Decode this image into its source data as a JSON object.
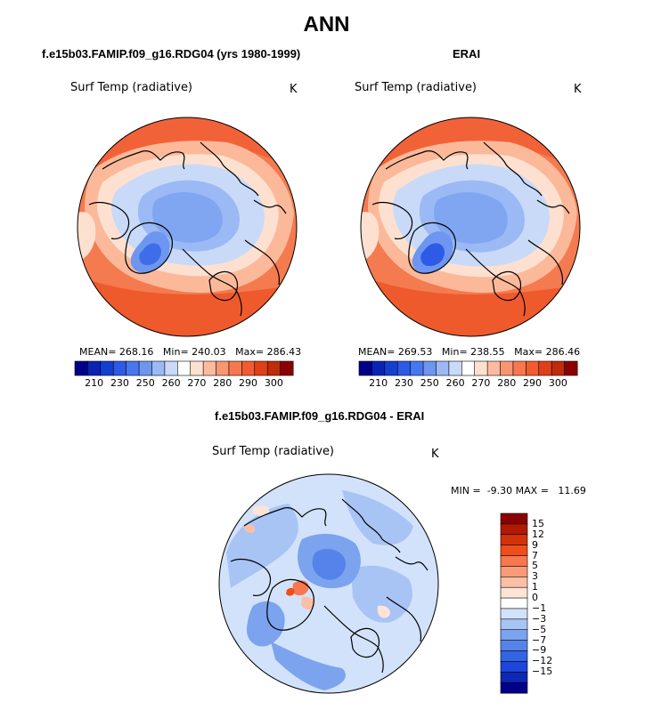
{
  "title": "ANN",
  "panels": [
    {
      "id": "model",
      "title": "f.e15b03.FAMIP.f09_g16.RDG04 (yrs 1980-1999)",
      "variable": "Surf Temp (radiative)",
      "units": "K",
      "stats": {
        "mean_label": "MEAN=",
        "mean": "268.16",
        "min_label": "Min=",
        "min": "240.03",
        "max_label": "Max=",
        "max": "286.43"
      }
    },
    {
      "id": "obs",
      "title": "ERAI",
      "variable": "Surf Temp (radiative)",
      "units": "K",
      "stats": {
        "mean_label": "MEAN=",
        "mean": "269.53",
        "min_label": "Min=",
        "min": "238.55",
        "max_label": "Max=",
        "max": "286.46"
      }
    }
  ],
  "diff_panel": {
    "title": "f.e15b03.FAMIP.f09_g16.RDG04 - ERAI",
    "variable": "Surf Temp (radiative)",
    "units": "K",
    "min_label": "MIN =",
    "min": "-9.30",
    "max_label": "MAX =",
    "max": "11.69"
  },
  "colorbar_abs": {
    "colors": [
      "#00008b",
      "#0a23b4",
      "#1440d2",
      "#2d5ae6",
      "#4678f0",
      "#6e96f0",
      "#9bb9f5",
      "#c8daf8",
      "#ffffff",
      "#fde0d0",
      "#fbbb9e",
      "#f99672",
      "#f7784f",
      "#f25b30",
      "#e04018",
      "#c02b0a",
      "#8b0000"
    ],
    "labels": [
      "210",
      "230",
      "250",
      "260",
      "270",
      "280",
      "290",
      "300"
    ]
  },
  "colorbar_diff": {
    "colors": [
      "#8b0000",
      "#b01a05",
      "#d23208",
      "#ef4d1a",
      "#f7784f",
      "#f99a78",
      "#fbbfa5",
      "#fde4d6",
      "#ffffff",
      "#d2e2fa",
      "#a8c4f5",
      "#7ca3ee",
      "#5683ea",
      "#3264e6",
      "#1e46dc",
      "#0c28b4",
      "#00008b"
    ],
    "labels": [
      "15",
      "12",
      "9",
      "7",
      "5",
      "3",
      "1",
      "0",
      "−1",
      "−3",
      "−5",
      "−7",
      "−9",
      "−12",
      "−15"
    ]
  }
}
